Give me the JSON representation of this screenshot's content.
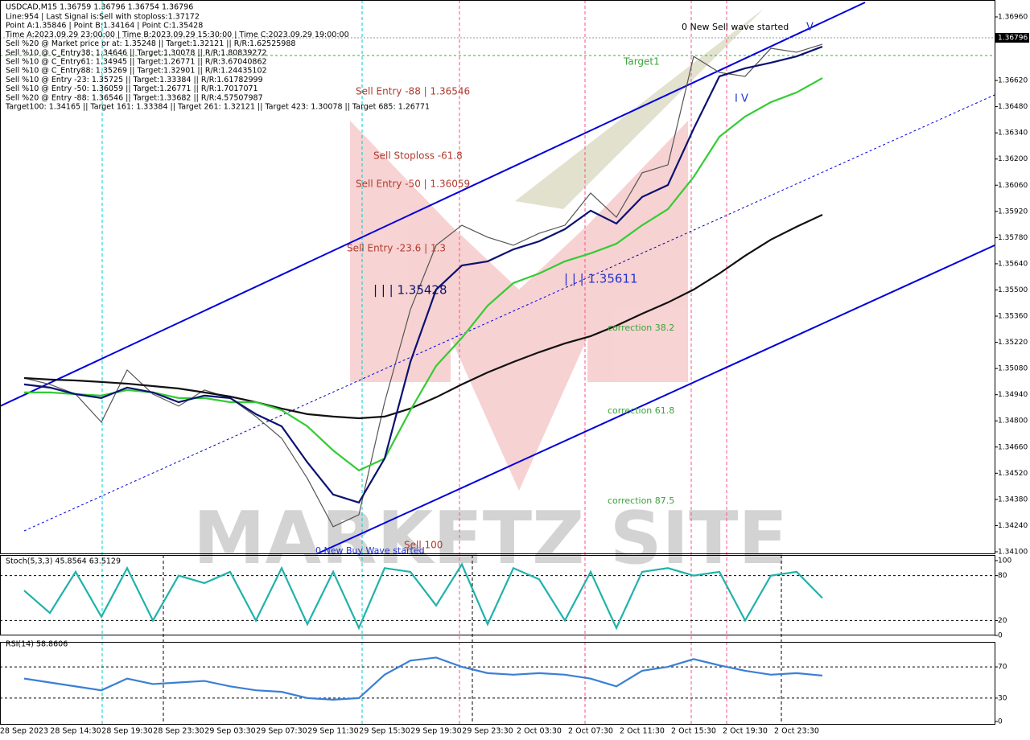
{
  "chart_data": [
    {
      "type": "line",
      "title": "USDCAD,M15  1.36759 1.36796 1.36754 1.36796",
      "info_lines": [
        "Line:954 | Last Signal is:Sell with stoploss:1.37172",
        "Point A:1.35846 | Point B:1.34164 | Point C:1.35428",
        "Time A:2023.09.29 23:00:00 | Time B:2023.09.29 15:30:00 | Time C:2023.09.29 19:00:00",
        "Sell %20 @ Market price or at: 1.35248 || Target:1.32121 || R/R:1.62525988",
        "Sell %10 @ C_Entry38: 1.34646 || Target:1.30078 || R/R:1.80839272",
        "Sell %10 @ C_Entry61: 1.34945 || Target:1.26771 || R/R:3.67040862",
        "Sell %10 @ C_Entry88: 1.35269 || Target:1.32901 || R/R:1.24435102",
        "Sell %10 @ Entry -23: 1.35725 || Target:1.33384 || R/R:1.61782999",
        "Sell %10 @ Entry -50: 1.36059 || Target:1.26771 || R/R:1.7017071",
        "Sell %20 @ Entry -88: 1.36546 || Target:1.33682 || R/R:4.57507987",
        "Target100: 1.34165 || Target 161: 1.33384 || Target 261: 1.32121 || Target 423: 1.30078 || Target 685: 1.26771"
      ],
      "annotations": [
        "0 New Sell wave started",
        "Target1",
        "Sell Entry -88 | 1.36546",
        "Sell Stoploss -61.8",
        "Sell Entry -50 | 1.36059",
        "Sell Entry -23.6 | 1.3",
        "| | | 1.35428",
        "| | | 1.35611",
        "I V",
        "V",
        "correction 38.2",
        "correction 61.8",
        "correction 87.5",
        "Sell 100",
        "0 New Buy Wave started"
      ],
      "last_price_label": "1.36796",
      "categories": [
        "28 Sep 2023",
        null,
        "28 Sep 14:30",
        null,
        "28 Sep 19:30",
        null,
        "28 Sep 23:30",
        null,
        "29 Sep 03:30",
        null,
        "29 Sep 07:30",
        null,
        "29 Sep 11:30",
        null,
        "29 Sep 15:30",
        null,
        "29 Sep 19:30",
        null,
        "29 Sep 23:30",
        null,
        "2 Oct 03:30",
        null,
        "2 Oct 07:30",
        null,
        "2 Oct 11:30",
        null,
        "2 Oct 15:30",
        null,
        "2 Oct 19:30",
        null,
        "2 Oct 23:30",
        null
      ],
      "series": [
        {
          "color": "#555555",
          "values": [
            1.35029,
            1.34995,
            1.34943,
            1.34793,
            1.35072,
            1.34943,
            1.34879,
            1.34965,
            1.34922,
            1.34823,
            1.34707,
            1.34492,
            1.34234,
            1.34298,
            1.349,
            1.35395,
            1.35739,
            1.35846,
            1.35782,
            1.35739,
            1.35803,
            1.35846,
            1.36018,
            1.35889,
            1.36126,
            1.36169,
            1.36749,
            1.36663,
            1.36642,
            1.36792,
            1.36771,
            1.36814
          ]
        },
        {
          "color": "#111111",
          "values": [
            1.35029,
            1.35021,
            1.35016,
            1.35008,
            1.34999,
            1.34986,
            1.34973,
            1.34952,
            1.3493,
            1.349,
            1.34866,
            1.34836,
            1.34823,
            1.34814,
            1.34823,
            1.34866,
            1.34926,
            1.34995,
            1.35059,
            1.35115,
            1.35167,
            1.35214,
            1.35253,
            1.35309,
            1.35373,
            1.35433,
            1.35502,
            1.35588,
            1.35683,
            1.35769,
            1.35838,
            1.35902
          ]
        },
        {
          "color": "#33cc33",
          "values": [
            1.34952,
            1.34952,
            1.34943,
            1.34935,
            1.34965,
            1.34952,
            1.34922,
            1.34922,
            1.349,
            1.349,
            1.34857,
            1.34771,
            1.34642,
            1.34535,
            1.34599,
            1.34857,
            1.35094,
            1.35244,
            1.35416,
            1.35537,
            1.35588,
            1.35653,
            1.35696,
            1.35747,
            1.35846,
            1.35932,
            1.36104,
            1.36319,
            1.36427,
            1.36504,
            1.36556,
            1.36633
          ]
        },
        {
          "color": "#0a1172",
          "values": [
            1.34995,
            1.34978,
            1.34943,
            1.34922,
            1.34978,
            1.34952,
            1.349,
            1.34935,
            1.34922,
            1.34836,
            1.34771,
            1.34578,
            1.34406,
            1.34363,
            1.34599,
            1.35115,
            1.35502,
            1.35631,
            1.35653,
            1.35717,
            1.3576,
            1.35825,
            1.35924,
            1.35855,
            1.35997,
            1.36061,
            1.36362,
            1.36642,
            1.36685,
            1.36715,
            1.36749,
            1.36801
          ]
        }
      ],
      "ylim": [
        1.341,
        1.3696
      ],
      "yticks": [
        {
          "value": 1.3696,
          "label": "1.36960"
        },
        {
          "value": 1.3662,
          "label": "1.36620"
        },
        {
          "value": 1.3648,
          "label": "1.36480"
        },
        {
          "value": 1.3634,
          "label": "1.36340"
        },
        {
          "value": 1.362,
          "label": "1.36200"
        },
        {
          "value": 1.3606,
          "label": "1.36060"
        },
        {
          "value": 1.3592,
          "label": "1.35920"
        },
        {
          "value": 1.3578,
          "label": "1.35780"
        },
        {
          "value": 1.3564,
          "label": "1.35640"
        },
        {
          "value": 1.355,
          "label": "1.35500"
        },
        {
          "value": 1.3536,
          "label": "1.35360"
        },
        {
          "value": 1.3522,
          "label": "1.35220"
        },
        {
          "value": 1.3508,
          "label": "1.35080"
        },
        {
          "value": 1.3494,
          "label": "1.34940"
        },
        {
          "value": 1.348,
          "label": "1.34800"
        },
        {
          "value": 1.3466,
          "label": "1.34660"
        },
        {
          "value": 1.3452,
          "label": "1.34520"
        },
        {
          "value": 1.3438,
          "label": "1.34380"
        },
        {
          "value": 1.3424,
          "label": "1.34240"
        },
        {
          "value": 1.341,
          "label": "1.34100"
        }
      ]
    },
    {
      "type": "line",
      "title": "Stoch(5,3,3) 45.8564 63.5129",
      "series": [
        {
          "color": "#20b2aa",
          "values": [
            60,
            30,
            85,
            25,
            90,
            20,
            80,
            70,
            85,
            20,
            90,
            15,
            85,
            10,
            90,
            85,
            40,
            95,
            15,
            90,
            75,
            20,
            85,
            10,
            85,
            90,
            80,
            85,
            20,
            80,
            85,
            50
          ]
        }
      ],
      "ylim": [
        0,
        100
      ],
      "yticks": [
        100,
        80,
        20,
        0
      ],
      "levels": [
        80,
        20
      ]
    },
    {
      "type": "line",
      "title": "RSI(14) 58.8606",
      "series": [
        {
          "color": "#3a7fd5",
          "values": [
            55,
            50,
            45,
            40,
            55,
            48,
            50,
            52,
            45,
            40,
            38,
            30,
            28,
            30,
            60,
            78,
            82,
            70,
            62,
            60,
            62,
            60,
            55,
            45,
            65,
            70,
            80,
            72,
            65,
            60,
            62,
            58.86
          ]
        }
      ],
      "ylim": [
        0,
        100
      ],
      "yticks": [
        70,
        30,
        0
      ],
      "levels": [
        70,
        30
      ]
    }
  ]
}
